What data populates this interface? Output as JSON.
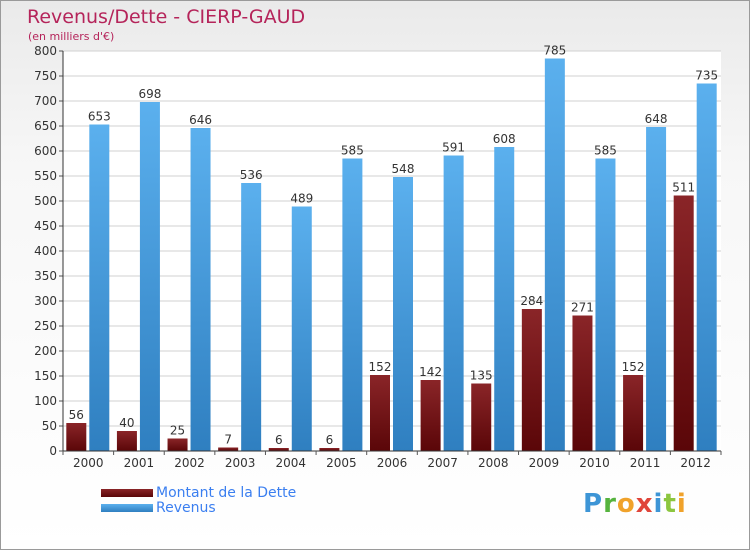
{
  "title": "Revenus/Dette - CIERP-GAUD",
  "subtitle": "(en milliers d'€)",
  "brand": "Proxiti",
  "chart_data": {
    "type": "bar",
    "categories": [
      "2000",
      "2001",
      "2002",
      "2003",
      "2004",
      "2005",
      "2006",
      "2007",
      "2008",
      "2009",
      "2010",
      "2011",
      "2012"
    ],
    "series": [
      {
        "name": "Montant de la Dette",
        "color": "#7a1518",
        "values": [
          56,
          40,
          25,
          7,
          6,
          6,
          152,
          142,
          135,
          284,
          271,
          152,
          511
        ]
      },
      {
        "name": "Revenus",
        "color": "#4aa3e6",
        "values": [
          653,
          698,
          646,
          536,
          489,
          585,
          548,
          591,
          608,
          785,
          585,
          648,
          735
        ]
      }
    ],
    "yticks": [
      0,
      50,
      100,
      150,
      200,
      250,
      300,
      350,
      400,
      450,
      500,
      550,
      600,
      650,
      700,
      750,
      800
    ],
    "ylim": [
      0,
      800
    ],
    "grid": true,
    "legend": "bottom-left"
  }
}
